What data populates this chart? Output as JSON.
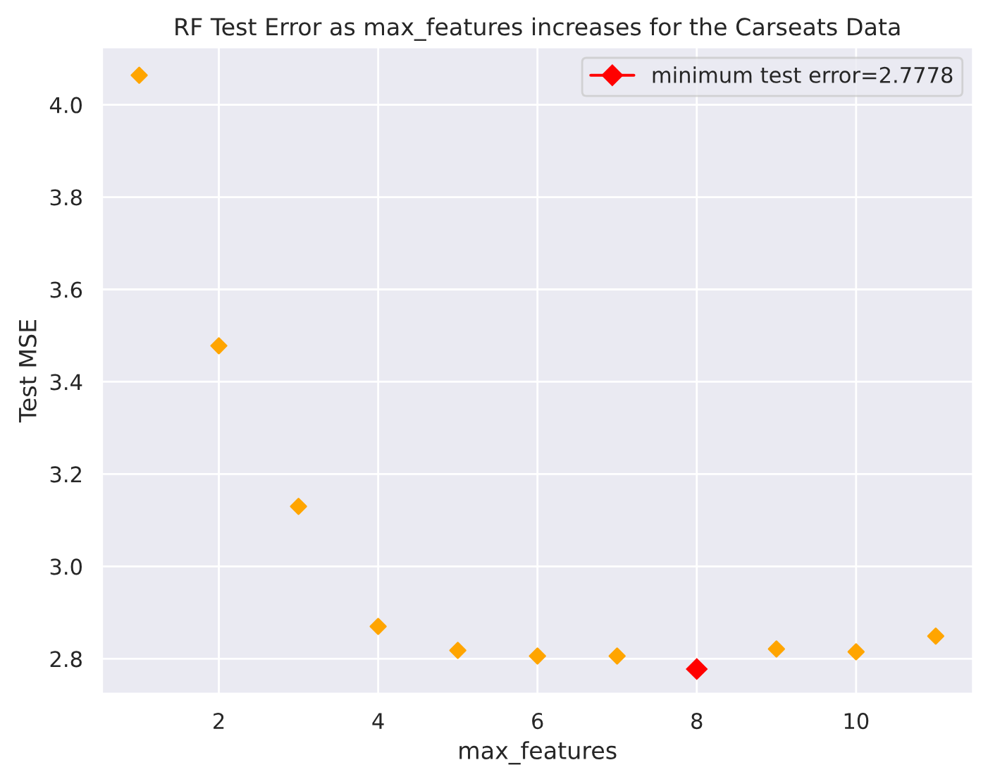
{
  "chart_data": {
    "type": "scatter",
    "title": "RF Test Error as max_features increases for the Carseats Data",
    "xlabel": "max_features",
    "ylabel": "Test MSE",
    "series": [
      {
        "type": "scatter",
        "color": "#ffa500",
        "marker": "diamond",
        "x": [
          1,
          2,
          3,
          4,
          5,
          6,
          7,
          8,
          9,
          10,
          11
        ],
        "values": [
          4.064,
          3.478,
          3.13,
          2.87,
          2.818,
          2.806,
          2.806,
          null,
          2.821,
          2.815,
          2.849
        ]
      },
      {
        "type": "line",
        "name": "minimum test error=2.7778",
        "color": "#ff0000",
        "marker": "diamond",
        "x": [
          8
        ],
        "values": [
          2.7778
        ]
      }
    ],
    "xlim": [
      0.53,
      11.47
    ],
    "xticks": [
      2,
      4,
      6,
      8,
      10
    ],
    "ylim": [
      2.724,
      4.125
    ],
    "yticks": [
      2.8,
      {
        "value": 3,
        "label": "3.0"
      },
      3.2,
      3.4,
      3.6,
      3.8,
      {
        "value": 4,
        "label": "4.0"
      }
    ],
    "grid": true,
    "legend": "top right"
  }
}
